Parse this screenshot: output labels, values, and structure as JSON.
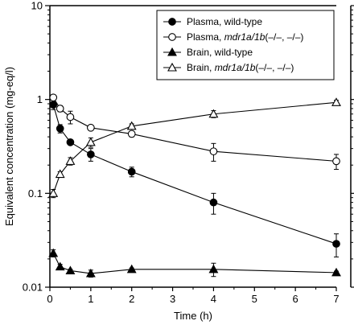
{
  "chart_data": {
    "type": "line",
    "title": "",
    "xlabel": "Time (h)",
    "ylabel": "Equivalent concentration (mg-eq/l)",
    "x_scale": "linear",
    "y_scale": "log",
    "xlim": [
      0,
      7
    ],
    "ylim": [
      0.01,
      10
    ],
    "x_ticks": [
      0,
      1,
      2,
      3,
      4,
      5,
      6,
      7
    ],
    "x_tick_labels": [
      "0",
      "1",
      "2",
      "3",
      "4",
      "5",
      "6",
      "7"
    ],
    "y_ticks": [
      0.01,
      0.1,
      1,
      10
    ],
    "y_tick_labels": [
      "0.01",
      "0.1",
      "1",
      "10"
    ],
    "grid": false,
    "legend_placement": "top-right",
    "series": [
      {
        "name": "Plasma, wild-type",
        "name_plain": "Plasma, wild-type",
        "name_italic": "",
        "name_suffix": "",
        "marker": "filled-circle",
        "x": [
          0.083,
          0.25,
          0.5,
          1,
          2,
          4,
          7
        ],
        "y": [
          0.88,
          0.49,
          0.35,
          0.26,
          0.17,
          0.08,
          0.029
        ],
        "err": [
          0.1,
          0.05,
          0.02,
          0.04,
          0.02,
          0.02,
          0.008
        ]
      },
      {
        "name": "Plasma, mdr1a/1b(–/–, –/–)",
        "name_plain": "Plasma, ",
        "name_italic": "mdr1a/1b",
        "name_suffix": "(–/–, –/–)",
        "marker": "open-circle",
        "x": [
          0.083,
          0.25,
          0.5,
          1,
          2,
          4,
          7
        ],
        "y": [
          1.05,
          0.8,
          0.65,
          0.5,
          0.43,
          0.28,
          0.22
        ],
        "err": [
          0.05,
          0.06,
          0.1,
          0.03,
          0.03,
          0.06,
          0.04
        ]
      },
      {
        "name": "Brain, wild-type",
        "name_plain": "Brain, wild-type",
        "name_italic": "",
        "name_suffix": "",
        "marker": "filled-triangle",
        "x": [
          0.083,
          0.25,
          0.5,
          1,
          2,
          4,
          7
        ],
        "y": [
          0.023,
          0.0165,
          0.015,
          0.014,
          0.0155,
          0.0155,
          0.0143
        ],
        "err": [
          0.002,
          0.001,
          0.0005,
          0.0012,
          0.0005,
          0.0025,
          0.0005
        ]
      },
      {
        "name": "Brain, mdr1a/1b(–/–, –/–)",
        "name_plain": "Brain, ",
        "name_italic": "mdr1a/1b",
        "name_suffix": "(–/–, –/–)",
        "marker": "open-triangle",
        "x": [
          0.083,
          0.25,
          0.5,
          1,
          2,
          4,
          7
        ],
        "y": [
          0.1,
          0.16,
          0.22,
          0.35,
          0.52,
          0.7,
          0.93
        ],
        "err": [
          0.01,
          0.01,
          0.02,
          0.04,
          0.03,
          0.06,
          0.05
        ]
      }
    ]
  }
}
